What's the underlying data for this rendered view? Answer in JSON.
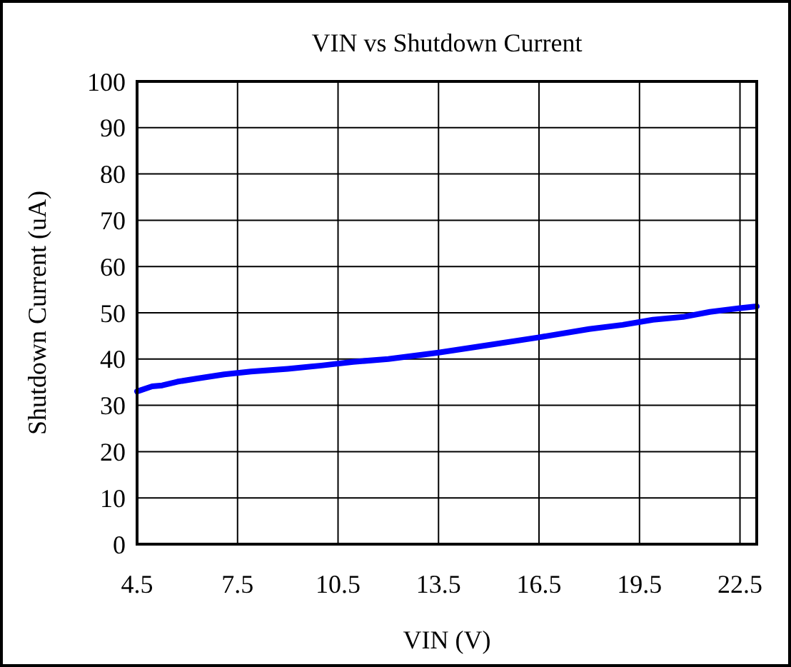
{
  "chart_data": {
    "type": "line",
    "title": "VIN vs Shutdown Current",
    "xlabel": "VIN (V)",
    "ylabel": "Shutdown Current (uA)",
    "x": [
      4.5,
      4.95,
      5.25,
      5.7,
      6.3,
      7.1,
      7.9,
      9.0,
      10.0,
      10.95,
      12.0,
      13.5,
      14.7,
      16.5,
      18.0,
      19.0,
      19.9,
      20.8,
      21.6,
      22.5,
      23.0
    ],
    "series": [
      {
        "color": "#0000ff",
        "values": [
          33.0,
          34.1,
          34.3,
          35.1,
          35.8,
          36.7,
          37.3,
          37.9,
          38.6,
          39.4,
          40.0,
          41.4,
          42.7,
          44.7,
          46.5,
          47.4,
          48.5,
          49.1,
          50.2,
          51.0,
          51.4
        ]
      }
    ],
    "xlim": [
      4.5,
      23
    ],
    "xticks": [
      4.5,
      7.5,
      10.5,
      13.5,
      16.5,
      19.5,
      22.5
    ],
    "ylim": [
      0,
      100
    ],
    "yticks": [
      0,
      10,
      20,
      30,
      40,
      50,
      60,
      70,
      80,
      90,
      100
    ],
    "grid": true,
    "marker": "none",
    "line_style": "solid"
  }
}
